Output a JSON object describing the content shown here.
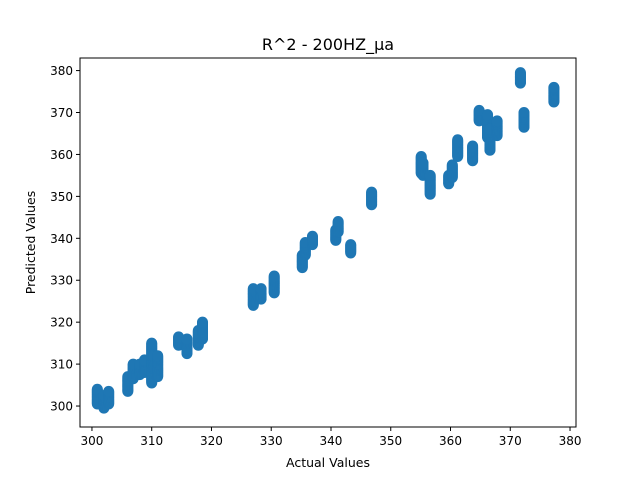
{
  "chart_data": {
    "type": "scatter",
    "title": "R^2 - 200HZ_µa",
    "xlabel": "Actual Values",
    "ylabel": "Predicted Values",
    "xlim": [
      298,
      381
    ],
    "ylim": [
      295,
      383
    ],
    "xticks": [
      300,
      310,
      320,
      330,
      340,
      350,
      360,
      370,
      380
    ],
    "yticks": [
      300,
      310,
      320,
      330,
      340,
      350,
      360,
      370,
      380
    ],
    "grid": false,
    "marker_color": "#1f77b4",
    "clusters": [
      {
        "x": 300.9,
        "y": [
          300.5,
          304.0
        ]
      },
      {
        "x": 302.0,
        "y": [
          299.5,
          302.5
        ]
      },
      {
        "x": 302.8,
        "y": [
          300.5,
          303.5
        ]
      },
      {
        "x": 306.0,
        "y": [
          303.5,
          307.0
        ]
      },
      {
        "x": 306.9,
        "y": [
          306.5,
          310.0
        ]
      },
      {
        "x": 308.0,
        "y": [
          307.5,
          310.0
        ]
      },
      {
        "x": 308.8,
        "y": [
          308.0,
          311.0
        ]
      },
      {
        "x": 310.0,
        "y": [
          305.5,
          315.0
        ]
      },
      {
        "x": 310.3,
        "y": [
          309.5,
          312.0
        ]
      },
      {
        "x": 311.0,
        "y": [
          307.0,
          312.0
        ]
      },
      {
        "x": 314.5,
        "y": [
          314.5,
          316.5
        ]
      },
      {
        "x": 315.9,
        "y": [
          312.5,
          316.0
        ]
      },
      {
        "x": 317.8,
        "y": [
          314.5,
          318.0
        ]
      },
      {
        "x": 318.5,
        "y": [
          316.0,
          320.0
        ]
      },
      {
        "x": 327.0,
        "y": [
          324.0,
          328.0
        ]
      },
      {
        "x": 328.3,
        "y": [
          325.5,
          328.0
        ]
      },
      {
        "x": 330.5,
        "y": [
          327.0,
          331.0
        ]
      },
      {
        "x": 335.2,
        "y": [
          333.0,
          336.0
        ]
      },
      {
        "x": 335.7,
        "y": [
          336.0,
          339.0
        ]
      },
      {
        "x": 336.9,
        "y": [
          338.5,
          340.5
        ]
      },
      {
        "x": 340.8,
        "y": [
          339.5,
          342.0
        ]
      },
      {
        "x": 341.2,
        "y": [
          341.5,
          344.0
        ]
      },
      {
        "x": 343.3,
        "y": [
          336.5,
          338.5
        ]
      },
      {
        "x": 346.8,
        "y": [
          348.0,
          351.0
        ]
      },
      {
        "x": 355.1,
        "y": [
          355.5,
          359.5
        ]
      },
      {
        "x": 355.4,
        "y": [
          355.0,
          358.0
        ]
      },
      {
        "x": 356.6,
        "y": [
          350.5,
          355.0
        ]
      },
      {
        "x": 359.7,
        "y": [
          353.0,
          355.0
        ]
      },
      {
        "x": 360.3,
        "y": [
          354.5,
          357.5
        ]
      },
      {
        "x": 361.2,
        "y": [
          359.5,
          363.5
        ]
      },
      {
        "x": 363.7,
        "y": [
          358.5,
          362.0
        ]
      },
      {
        "x": 364.8,
        "y": [
          368.0,
          370.5
        ]
      },
      {
        "x": 366.2,
        "y": [
          364.0,
          369.5
        ]
      },
      {
        "x": 366.6,
        "y": [
          361.0,
          366.0
        ]
      },
      {
        "x": 367.8,
        "y": [
          364.5,
          368.0
        ]
      },
      {
        "x": 371.7,
        "y": [
          377.0,
          379.5
        ]
      },
      {
        "x": 372.3,
        "y": [
          366.5,
          370.0
        ]
      },
      {
        "x": 377.3,
        "y": [
          372.5,
          376.0
        ]
      }
    ]
  }
}
